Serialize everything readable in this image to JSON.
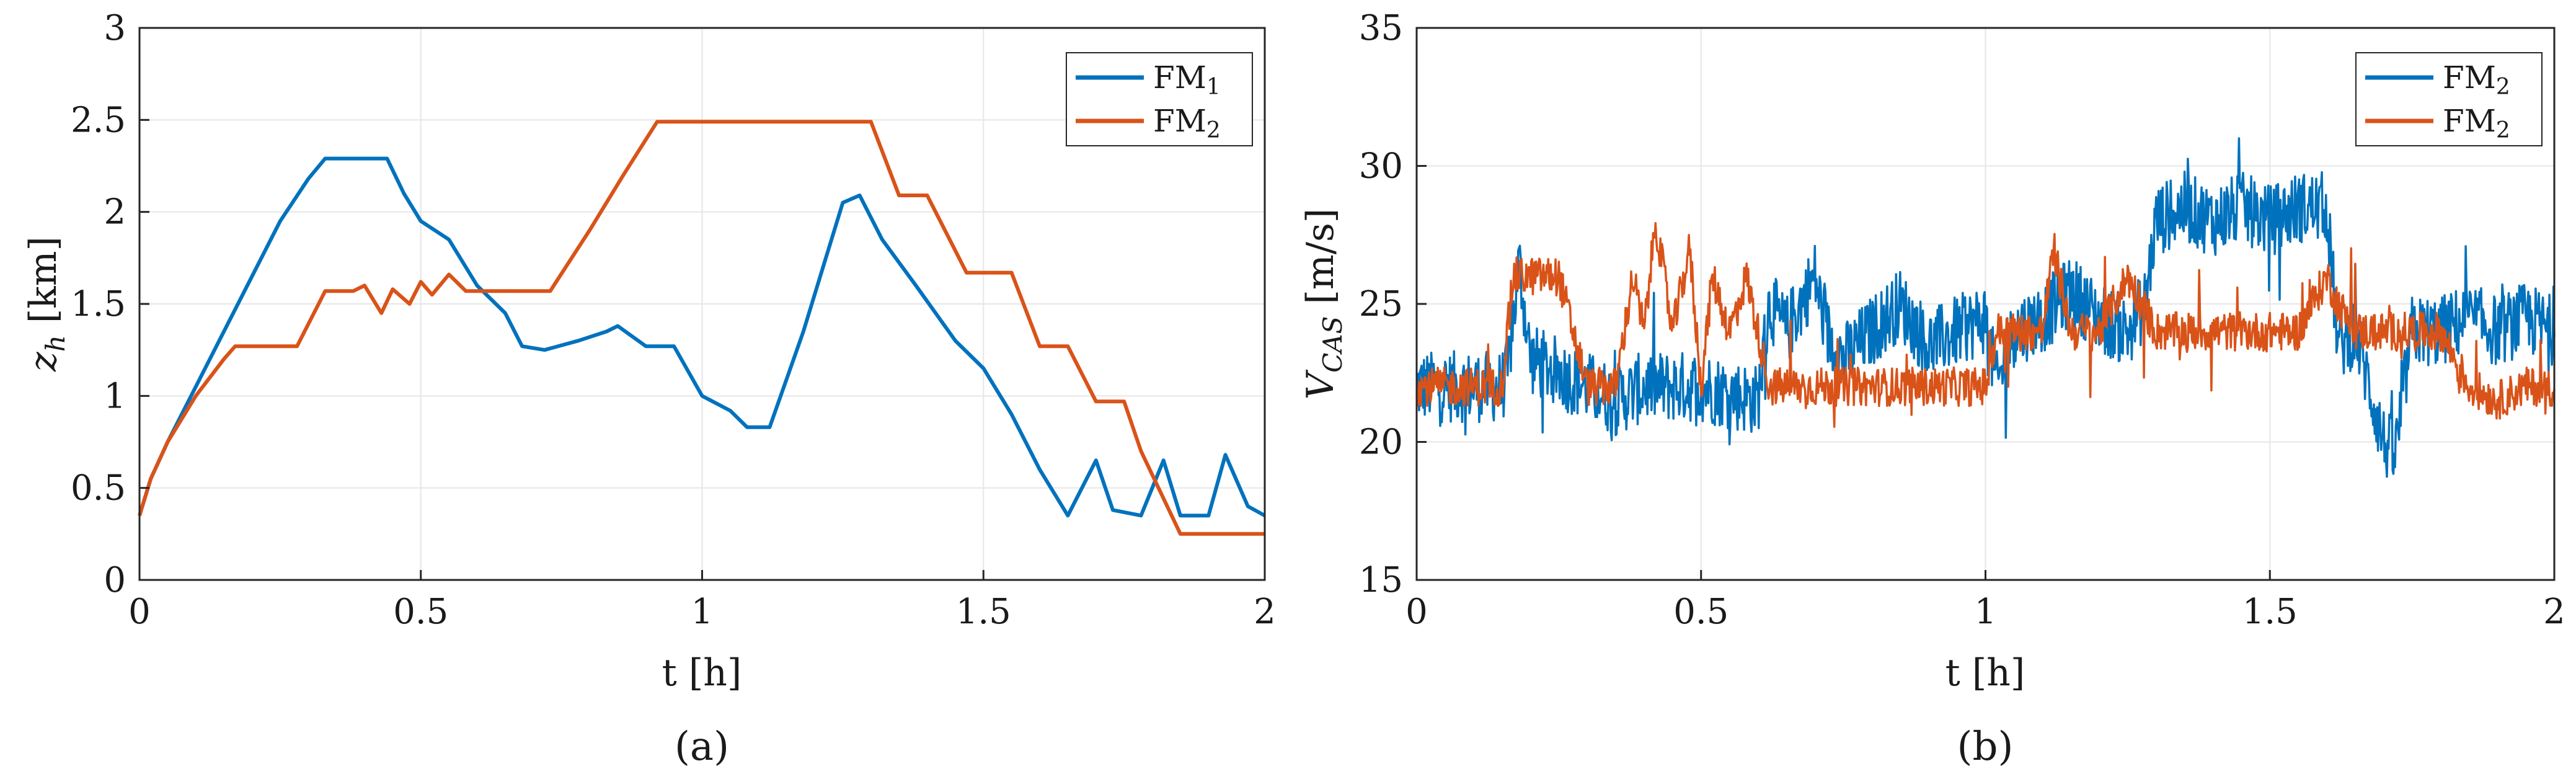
{
  "colors": {
    "series1": "#0072BD",
    "series2": "#D95319",
    "grid": "#e6e6e6",
    "axis": "#262626"
  },
  "chart_data": [
    {
      "type": "line",
      "caption": "(a)",
      "xlabel": "t [h]",
      "ylabel": {
        "main": "z",
        "sub": "h",
        "unit": " [km]"
      },
      "xlim": [
        0,
        2
      ],
      "ylim": [
        0,
        3
      ],
      "xticks": [
        0,
        0.5,
        1,
        1.5,
        2
      ],
      "yticks": [
        0,
        0.5,
        1,
        1.5,
        2,
        2.5,
        3
      ],
      "xtick_labels": [
        "0",
        "0.5",
        "1",
        "1.5",
        "2"
      ],
      "ytick_labels": [
        "0",
        "0.5",
        "1",
        "1.5",
        "2",
        "2.5",
        "3"
      ],
      "grid": true,
      "legend_position": "top-right",
      "series": [
        {
          "name": "FM",
          "sub": "1",
          "color_key": "series1",
          "x": [
            0,
            0.02,
            0.05,
            0.1,
            0.15,
            0.2,
            0.25,
            0.3,
            0.33,
            0.4,
            0.44,
            0.47,
            0.5,
            0.55,
            0.6,
            0.65,
            0.68,
            0.72,
            0.78,
            0.83,
            0.85,
            0.9,
            0.95,
            1.0,
            1.05,
            1.08,
            1.12,
            1.18,
            1.22,
            1.25,
            1.28,
            1.32,
            1.38,
            1.45,
            1.5,
            1.55,
            1.6,
            1.65,
            1.7,
            1.73,
            1.78,
            1.82,
            1.85,
            1.9,
            1.93,
            1.97,
            2.0
          ],
          "y": [
            0.35,
            0.55,
            0.75,
            1.05,
            1.35,
            1.65,
            1.95,
            2.18,
            2.29,
            2.29,
            2.29,
            2.1,
            1.95,
            1.85,
            1.6,
            1.45,
            1.27,
            1.25,
            1.3,
            1.35,
            1.38,
            1.27,
            1.27,
            1.0,
            0.92,
            0.83,
            0.83,
            1.35,
            1.75,
            2.05,
            2.09,
            1.85,
            1.6,
            1.3,
            1.15,
            0.9,
            0.6,
            0.35,
            0.65,
            0.38,
            0.35,
            0.65,
            0.35,
            0.35,
            0.68,
            0.4,
            0.35
          ]
        },
        {
          "name": "FM",
          "sub": "2",
          "color_key": "series2",
          "x": [
            0,
            0.02,
            0.05,
            0.1,
            0.15,
            0.17,
            0.2,
            0.25,
            0.28,
            0.33,
            0.38,
            0.4,
            0.43,
            0.45,
            0.48,
            0.5,
            0.52,
            0.55,
            0.58,
            0.62,
            0.7,
            0.73,
            0.8,
            0.86,
            0.92,
            1.0,
            1.2,
            1.3,
            1.35,
            1.4,
            1.47,
            1.55,
            1.6,
            1.65,
            1.7,
            1.75,
            1.78,
            1.85,
            1.9,
            2.0
          ],
          "y": [
            0.35,
            0.55,
            0.75,
            1.0,
            1.2,
            1.27,
            1.27,
            1.27,
            1.27,
            1.57,
            1.57,
            1.6,
            1.45,
            1.58,
            1.5,
            1.62,
            1.55,
            1.66,
            1.57,
            1.57,
            1.57,
            1.57,
            1.9,
            2.2,
            2.49,
            2.49,
            2.49,
            2.49,
            2.09,
            2.09,
            1.67,
            1.67,
            1.27,
            1.27,
            0.97,
            0.97,
            0.7,
            0.25,
            0.25,
            0.25
          ]
        }
      ]
    },
    {
      "type": "line",
      "caption": "(b)",
      "xlabel": "t [h]",
      "ylabel": {
        "main": "V",
        "sub": "CAS",
        "unit": " [m/s]"
      },
      "xlim": [
        0,
        2
      ],
      "ylim": [
        15,
        35
      ],
      "xticks": [
        0,
        0.5,
        1,
        1.5,
        2
      ],
      "yticks": [
        15,
        20,
        25,
        30,
        35
      ],
      "xtick_labels": [
        "0",
        "0.5",
        "1",
        "1.5",
        "2"
      ],
      "ytick_labels": [
        "15",
        "20",
        "25",
        "30",
        "35"
      ],
      "grid": true,
      "legend_position": "top-right",
      "series": [
        {
          "name": "FM",
          "sub": "2",
          "color_key": "series1",
          "noise": 1.3,
          "x": [
            0,
            0.15,
            0.16,
            0.18,
            0.2,
            0.3,
            0.35,
            0.4,
            0.5,
            0.6,
            0.62,
            0.65,
            0.7,
            0.72,
            0.75,
            0.8,
            0.85,
            0.9,
            0.95,
            1.0,
            1.02,
            1.05,
            1.1,
            1.15,
            1.2,
            1.25,
            1.28,
            1.3,
            1.35,
            1.4,
            1.45,
            1.5,
            1.55,
            1.6,
            1.62,
            1.65,
            1.7,
            1.72,
            1.75,
            1.8,
            1.85,
            1.9,
            1.95,
            2.0
          ],
          "y": [
            22,
            22,
            22.5,
            26.5,
            23,
            22,
            21.5,
            22,
            22,
            21.5,
            25,
            24,
            26,
            24,
            23,
            24,
            25,
            23.5,
            24,
            24.5,
            22,
            24,
            24.5,
            25.5,
            24.5,
            24,
            25,
            28,
            28.5,
            28,
            28.5,
            28,
            28.5,
            28.5,
            23.5,
            24,
            20,
            19.5,
            24,
            24,
            24.5,
            24,
            24.5,
            24
          ]
        },
        {
          "name": "FM",
          "sub": "2",
          "color_key": "series2",
          "noise": 0.7,
          "x": [
            0,
            0.15,
            0.17,
            0.2,
            0.25,
            0.3,
            0.35,
            0.38,
            0.4,
            0.42,
            0.45,
            0.48,
            0.5,
            0.52,
            0.55,
            0.58,
            0.62,
            0.65,
            0.7,
            0.75,
            0.8,
            0.9,
            1.0,
            1.02,
            1.05,
            1.1,
            1.12,
            1.15,
            1.2,
            1.25,
            1.3,
            1.35,
            1.4,
            1.5,
            1.55,
            1.6,
            1.62,
            1.65,
            1.7,
            1.75,
            1.8,
            1.85,
            1.9,
            1.95,
            2.0
          ],
          "y": [
            22,
            22,
            26,
            26,
            26,
            22,
            22,
            26,
            24,
            28,
            24,
            27,
            22,
            26,
            24,
            26,
            22,
            22,
            22,
            22,
            22,
            22,
            22,
            24,
            24,
            24,
            27,
            24,
            24,
            26,
            24,
            24,
            24,
            24,
            24,
            26,
            25,
            24,
            24,
            24,
            24,
            22,
            21.5,
            22,
            22
          ]
        }
      ]
    }
  ]
}
